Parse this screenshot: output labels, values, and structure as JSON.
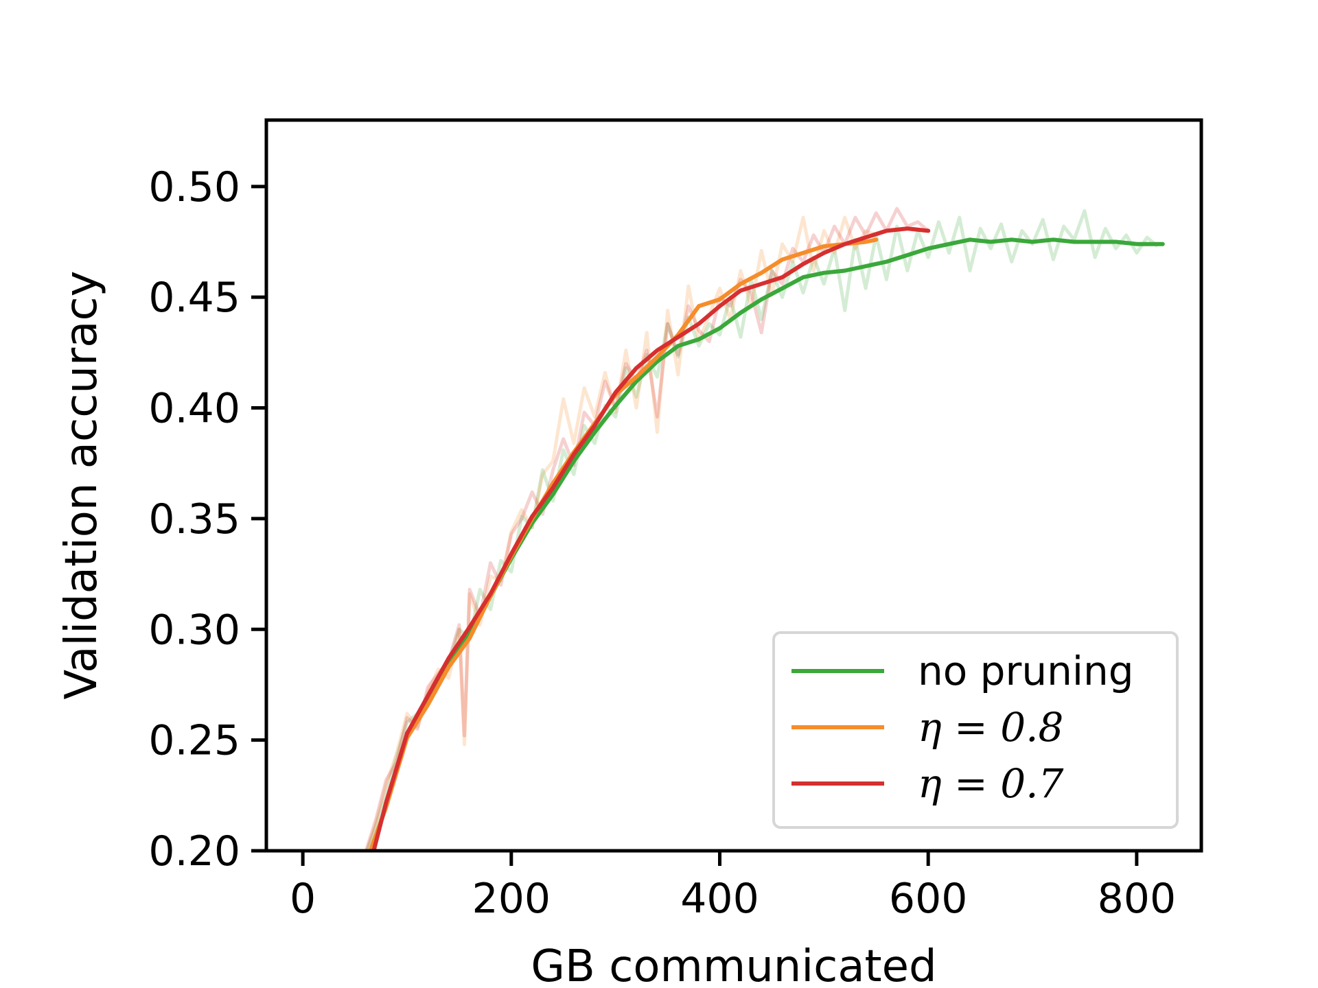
{
  "chart_data": {
    "type": "line",
    "xlabel": "GB communicated",
    "ylabel": "Validation accuracy",
    "xlim": [
      -35,
      862
    ],
    "ylim": [
      0.2,
      0.53
    ],
    "xticks": [
      0,
      200,
      400,
      600,
      800
    ],
    "yticks": [
      0.2,
      0.25,
      0.3,
      0.35,
      0.4,
      0.45,
      0.5
    ],
    "xtick_labels": [
      "0",
      "200",
      "400",
      "600",
      "800"
    ],
    "ytick_labels": [
      "0.20",
      "0.25",
      "0.30",
      "0.35",
      "0.40",
      "0.45",
      "0.50"
    ],
    "grid": false,
    "legend_position": "lower-right",
    "series": [
      {
        "name": "no pruning",
        "color": "#3aa83a",
        "smoothed": {
          "x": [
            65,
            80,
            100,
            120,
            140,
            160,
            180,
            200,
            220,
            240,
            260,
            280,
            300,
            320,
            340,
            360,
            380,
            400,
            420,
            440,
            460,
            480,
            500,
            520,
            540,
            560,
            580,
            600,
            620,
            640,
            660,
            680,
            700,
            720,
            740,
            760,
            780,
            800,
            825
          ],
          "y": [
            0.2,
            0.22,
            0.252,
            0.268,
            0.284,
            0.298,
            0.315,
            0.332,
            0.348,
            0.361,
            0.376,
            0.389,
            0.401,
            0.412,
            0.421,
            0.428,
            0.431,
            0.436,
            0.443,
            0.449,
            0.454,
            0.459,
            0.461,
            0.462,
            0.464,
            0.466,
            0.469,
            0.472,
            0.474,
            0.476,
            0.475,
            0.476,
            0.475,
            0.476,
            0.475,
            0.475,
            0.475,
            0.474,
            0.474
          ]
        },
        "raw": {
          "x": [
            60,
            70,
            80,
            90,
            100,
            110,
            120,
            130,
            140,
            150,
            160,
            170,
            180,
            190,
            200,
            210,
            220,
            230,
            240,
            250,
            260,
            270,
            280,
            290,
            300,
            310,
            320,
            330,
            340,
            350,
            360,
            370,
            380,
            390,
            400,
            410,
            420,
            430,
            440,
            450,
            460,
            470,
            480,
            490,
            500,
            510,
            520,
            530,
            540,
            550,
            560,
            570,
            580,
            590,
            600,
            610,
            620,
            630,
            640,
            650,
            660,
            670,
            680,
            690,
            700,
            710,
            720,
            730,
            740,
            750,
            760,
            770,
            780,
            790,
            800,
            810,
            820
          ],
          "y": [
            0.198,
            0.211,
            0.226,
            0.243,
            0.258,
            0.262,
            0.27,
            0.279,
            0.285,
            0.3,
            0.296,
            0.318,
            0.309,
            0.331,
            0.326,
            0.351,
            0.346,
            0.372,
            0.358,
            0.381,
            0.37,
            0.392,
            0.384,
            0.401,
            0.396,
            0.418,
            0.405,
            0.424,
            0.414,
            0.438,
            0.423,
            0.441,
            0.428,
            0.438,
            0.433,
            0.45,
            0.432,
            0.458,
            0.44,
            0.462,
            0.45,
            0.466,
            0.452,
            0.468,
            0.456,
            0.472,
            0.444,
            0.476,
            0.454,
            0.478,
            0.458,
            0.482,
            0.462,
            0.48,
            0.468,
            0.484,
            0.47,
            0.486,
            0.462,
            0.481,
            0.472,
            0.483,
            0.466,
            0.48,
            0.474,
            0.485,
            0.467,
            0.482,
            0.476,
            0.489,
            0.468,
            0.481,
            0.472,
            0.478,
            0.47,
            0.477,
            0.473
          ]
        }
      },
      {
        "name": "η = 0.8",
        "color": "#f58d2a",
        "smoothed": {
          "x": [
            65,
            80,
            100,
            120,
            140,
            160,
            180,
            200,
            220,
            240,
            260,
            280,
            300,
            320,
            340,
            360,
            380,
            400,
            420,
            440,
            460,
            480,
            500,
            520,
            540,
            550
          ],
          "y": [
            0.2,
            0.22,
            0.251,
            0.266,
            0.283,
            0.296,
            0.315,
            0.333,
            0.35,
            0.366,
            0.38,
            0.393,
            0.406,
            0.414,
            0.423,
            0.433,
            0.446,
            0.449,
            0.456,
            0.461,
            0.467,
            0.47,
            0.473,
            0.474,
            0.475,
            0.476
          ]
        },
        "raw": {
          "x": [
            60,
            70,
            80,
            90,
            100,
            110,
            120,
            130,
            140,
            150,
            155,
            160,
            170,
            180,
            190,
            200,
            210,
            220,
            230,
            240,
            250,
            260,
            270,
            280,
            290,
            300,
            310,
            320,
            330,
            340,
            350,
            360,
            370,
            380,
            390,
            400,
            410,
            420,
            430,
            440,
            450,
            460,
            470,
            480,
            490,
            500,
            510,
            520,
            530,
            540,
            550
          ],
          "y": [
            0.198,
            0.212,
            0.23,
            0.244,
            0.262,
            0.256,
            0.272,
            0.282,
            0.278,
            0.3,
            0.248,
            0.316,
            0.302,
            0.324,
            0.322,
            0.344,
            0.354,
            0.346,
            0.37,
            0.376,
            0.404,
            0.384,
            0.409,
            0.396,
            0.416,
            0.398,
            0.426,
            0.4,
            0.434,
            0.389,
            0.444,
            0.415,
            0.455,
            0.43,
            0.442,
            0.454,
            0.44,
            0.462,
            0.446,
            0.471,
            0.451,
            0.474,
            0.466,
            0.486,
            0.462,
            0.48,
            0.47,
            0.486,
            0.472,
            0.48,
            0.478
          ]
        }
      },
      {
        "name": "η = 0.7",
        "color": "#d62f2f",
        "smoothed": {
          "x": [
            68,
            80,
            100,
            120,
            140,
            160,
            180,
            200,
            220,
            240,
            260,
            280,
            300,
            320,
            340,
            360,
            380,
            400,
            420,
            440,
            460,
            480,
            500,
            520,
            540,
            560,
            580,
            600
          ],
          "y": [
            0.2,
            0.222,
            0.253,
            0.27,
            0.287,
            0.301,
            0.316,
            0.334,
            0.351,
            0.364,
            0.379,
            0.392,
            0.407,
            0.418,
            0.426,
            0.432,
            0.438,
            0.446,
            0.453,
            0.456,
            0.459,
            0.465,
            0.47,
            0.474,
            0.477,
            0.48,
            0.481,
            0.48
          ]
        },
        "raw": {
          "x": [
            60,
            70,
            80,
            90,
            100,
            110,
            120,
            130,
            140,
            150,
            155,
            160,
            170,
            180,
            190,
            200,
            210,
            220,
            230,
            240,
            250,
            260,
            270,
            280,
            290,
            300,
            310,
            320,
            330,
            340,
            350,
            360,
            370,
            380,
            390,
            400,
            410,
            420,
            430,
            440,
            450,
            460,
            470,
            480,
            490,
            500,
            510,
            520,
            530,
            540,
            550,
            560,
            570,
            580,
            590,
            600
          ],
          "y": [
            0.199,
            0.214,
            0.232,
            0.24,
            0.26,
            0.255,
            0.274,
            0.28,
            0.286,
            0.302,
            0.252,
            0.318,
            0.306,
            0.33,
            0.32,
            0.343,
            0.35,
            0.362,
            0.352,
            0.372,
            0.386,
            0.374,
            0.398,
            0.392,
            0.412,
            0.4,
            0.42,
            0.412,
            0.426,
            0.396,
            0.438,
            0.424,
            0.446,
            0.435,
            0.43,
            0.45,
            0.446,
            0.458,
            0.452,
            0.434,
            0.462,
            0.456,
            0.472,
            0.466,
            0.478,
            0.47,
            0.482,
            0.474,
            0.486,
            0.478,
            0.488,
            0.48,
            0.49,
            0.482,
            0.484,
            0.48
          ]
        }
      }
    ]
  },
  "legend": {
    "items": [
      {
        "label": "no pruning",
        "math": false
      },
      {
        "label": "η = 0.8",
        "math": true
      },
      {
        "label": "η = 0.7",
        "math": true
      }
    ]
  }
}
